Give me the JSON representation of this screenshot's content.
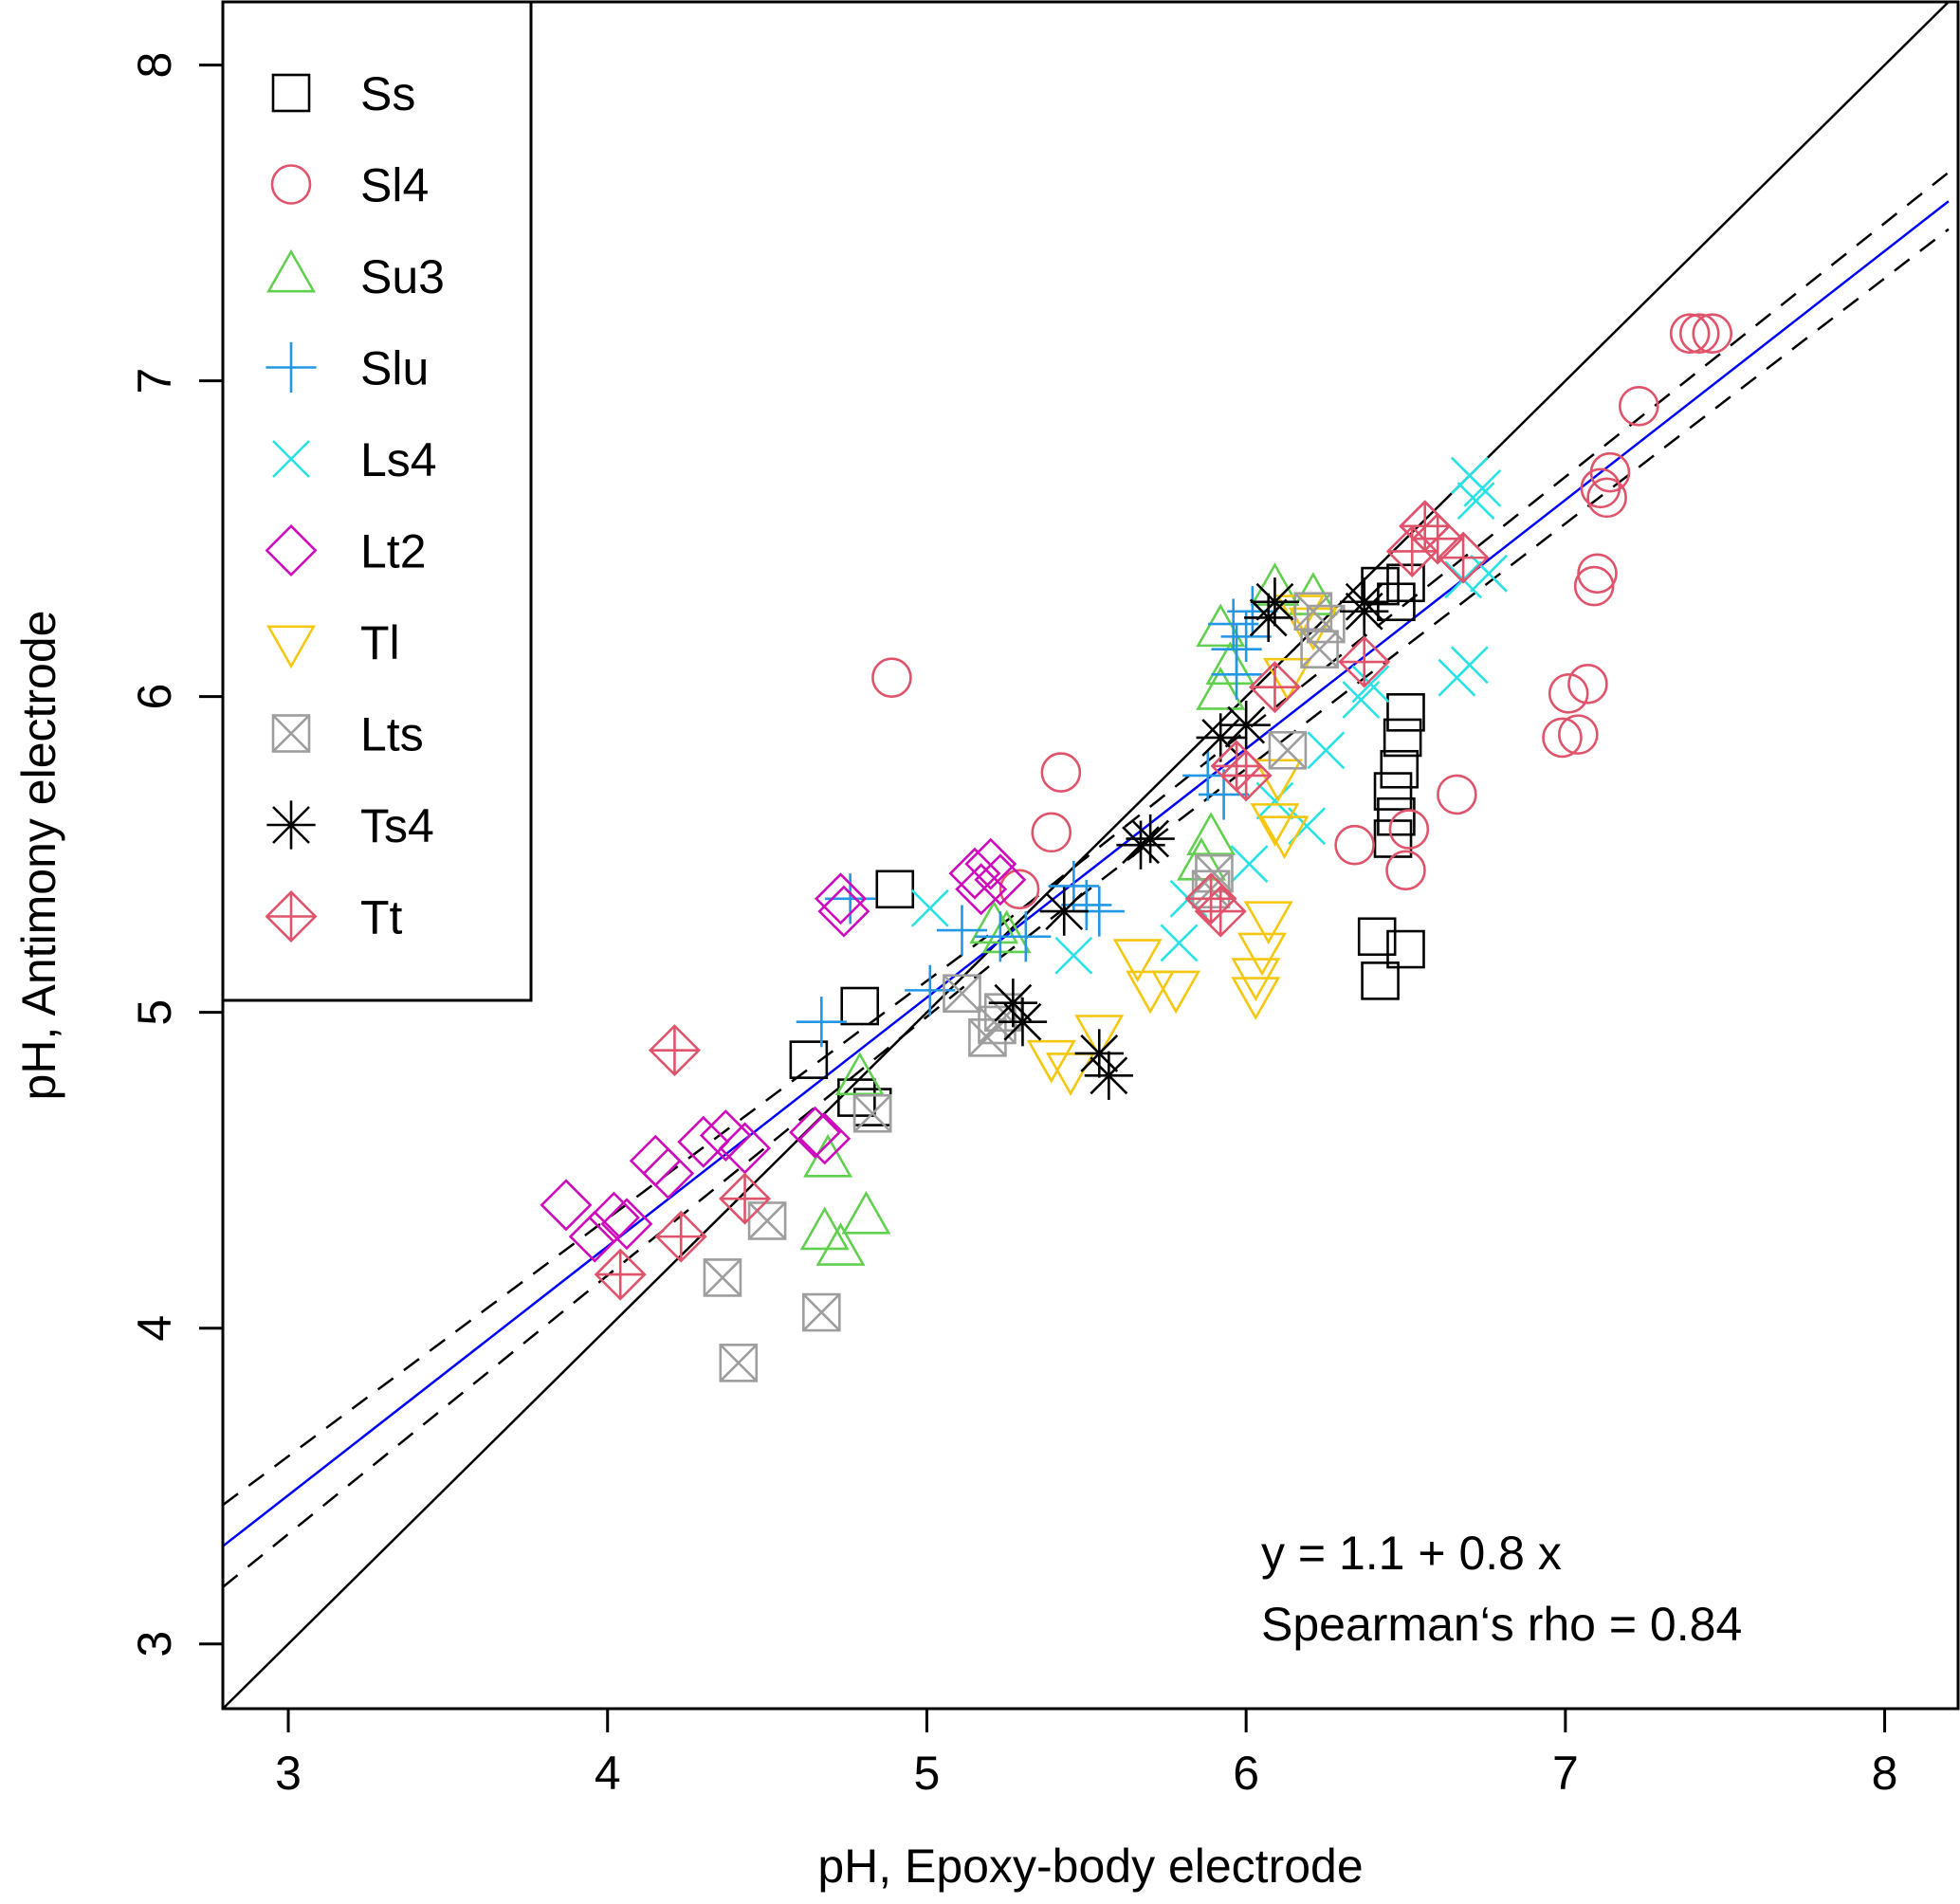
{
  "chart_data": {
    "type": "scatter",
    "title": "",
    "xlabel": "pH, Epoxy-body electrode",
    "ylabel": "pH, Antimony electrode",
    "xlim": [
      2.795,
      8.23
    ],
    "ylim": [
      2.795,
      8.2
    ],
    "xticks": [
      3,
      4,
      5,
      6,
      7,
      8
    ],
    "yticks": [
      3,
      4,
      5,
      6,
      7,
      8
    ],
    "xtick_labels": [
      "3",
      "4",
      "5",
      "6",
      "7",
      "8"
    ],
    "ytick_labels": [
      "3",
      "4",
      "5",
      "6",
      "7",
      "8"
    ],
    "grid": false,
    "legend_position": "top-left",
    "annotations": [
      "y = 1.1 + 0.8 x",
      "Spearman‘s rho = 0.84"
    ],
    "lines": [
      {
        "name": "identity",
        "kind": "solid",
        "color": "#000000",
        "intercept": 0,
        "slope": 1
      },
      {
        "name": "regression",
        "kind": "solid",
        "color": "#0000ff",
        "intercept": 1.107,
        "slope": 0.788
      },
      {
        "name": "confidence-upper",
        "kind": "dashed",
        "color": "#000000",
        "points": [
          [
            2.795,
            3.44
          ],
          [
            5.2,
            5.25
          ],
          [
            8.2,
            7.66
          ]
        ]
      },
      {
        "name": "confidence-lower",
        "kind": "dashed",
        "color": "#000000",
        "points": [
          [
            2.795,
            3.18
          ],
          [
            5.2,
            5.15
          ],
          [
            8.2,
            7.48
          ]
        ]
      }
    ],
    "series": [
      {
        "name": "Ss",
        "marker": "square",
        "color": "#000000",
        "points": [
          [
            4.9,
            5.39
          ],
          [
            4.79,
            5.02
          ],
          [
            4.63,
            4.85
          ],
          [
            4.78,
            4.73
          ],
          [
            4.83,
            4.7
          ],
          [
            6.47,
            6.3
          ],
          [
            6.42,
            6.35
          ],
          [
            6.5,
            6.36
          ],
          [
            6.5,
            5.95
          ],
          [
            6.49,
            5.87
          ],
          [
            6.48,
            5.77
          ],
          [
            6.46,
            5.7
          ],
          [
            6.47,
            5.62
          ],
          [
            6.46,
            5.55
          ],
          [
            6.41,
            5.24
          ],
          [
            6.5,
            5.2
          ],
          [
            6.42,
            5.1
          ]
        ]
      },
      {
        "name": "Sl4",
        "marker": "circle",
        "color": "#df536b",
        "points": [
          [
            4.89,
            6.06
          ],
          [
            5.42,
            5.76
          ],
          [
            5.39,
            5.57
          ],
          [
            5.29,
            5.39
          ],
          [
            6.34,
            5.53
          ],
          [
            6.51,
            5.58
          ],
          [
            6.5,
            5.45
          ],
          [
            6.66,
            5.69
          ],
          [
            6.99,
            5.87
          ],
          [
            7.04,
            5.88
          ],
          [
            7.01,
            6.01
          ],
          [
            7.07,
            6.04
          ],
          [
            7.09,
            6.35
          ],
          [
            7.1,
            6.39
          ],
          [
            7.11,
            6.66
          ],
          [
            7.14,
            6.71
          ],
          [
            7.13,
            6.63
          ],
          [
            7.23,
            6.92
          ],
          [
            7.39,
            7.15
          ],
          [
            7.42,
            7.15
          ],
          [
            7.46,
            7.15
          ]
        ]
      },
      {
        "name": "Su3",
        "marker": "triangle-up",
        "color": "#61d04f",
        "points": [
          [
            4.81,
            4.35
          ],
          [
            4.73,
            4.25
          ],
          [
            4.68,
            4.3
          ],
          [
            4.69,
            4.53
          ],
          [
            4.79,
            4.79
          ],
          [
            5.21,
            5.27
          ],
          [
            5.25,
            5.24
          ],
          [
            5.89,
            5.55
          ],
          [
            5.86,
            5.47
          ],
          [
            5.92,
            6.01
          ],
          [
            5.95,
            6.09
          ],
          [
            6.09,
            6.34
          ],
          [
            6.21,
            6.31
          ],
          [
            5.92,
            6.21
          ]
        ]
      },
      {
        "name": "Slu",
        "marker": "plus",
        "color": "#2297e6",
        "points": [
          [
            4.67,
            4.97
          ],
          [
            5.01,
            5.07
          ],
          [
            5.11,
            5.26
          ],
          [
            5.23,
            5.24
          ],
          [
            5.31,
            5.24
          ],
          [
            5.46,
            5.4
          ],
          [
            5.5,
            5.34
          ],
          [
            5.54,
            5.32
          ],
          [
            5.88,
            5.75
          ],
          [
            5.93,
            5.69
          ],
          [
            5.96,
            6.23
          ],
          [
            5.97,
            6.15
          ],
          [
            6.0,
            6.19
          ],
          [
            6.02,
            6.27
          ],
          [
            5.97,
            6.07
          ],
          [
            4.76,
            5.36
          ]
        ]
      },
      {
        "name": "Ls4",
        "marker": "x",
        "color": "#28e2e5",
        "points": [
          [
            5.01,
            5.33
          ],
          [
            5.46,
            5.18
          ],
          [
            5.79,
            5.22
          ],
          [
            5.82,
            5.36
          ],
          [
            6.01,
            5.47
          ],
          [
            6.19,
            5.59
          ],
          [
            6.25,
            5.83
          ],
          [
            6.36,
            5.99
          ],
          [
            6.39,
            6.04
          ],
          [
            6.66,
            6.06
          ],
          [
            6.7,
            6.1
          ],
          [
            6.72,
            6.62
          ],
          [
            6.74,
            6.66
          ],
          [
            6.7,
            6.7
          ],
          [
            6.68,
            6.37
          ],
          [
            6.76,
            6.39
          ],
          [
            6.09,
            5.67
          ]
        ]
      },
      {
        "name": "Lt2",
        "marker": "diamond",
        "color": "#cd0bbc",
        "points": [
          [
            3.87,
            4.39
          ],
          [
            3.96,
            4.29
          ],
          [
            4.02,
            4.35
          ],
          [
            4.06,
            4.33
          ],
          [
            4.15,
            4.53
          ],
          [
            4.19,
            4.49
          ],
          [
            4.3,
            4.59
          ],
          [
            4.37,
            4.61
          ],
          [
            4.43,
            4.57
          ],
          [
            4.65,
            4.62
          ],
          [
            4.68,
            4.6
          ],
          [
            4.73,
            5.36
          ],
          [
            4.74,
            5.32
          ],
          [
            5.15,
            5.44
          ],
          [
            5.2,
            5.47
          ],
          [
            5.23,
            5.42
          ],
          [
            5.17,
            5.39
          ],
          [
            6.56,
            6.54
          ]
        ]
      },
      {
        "name": "Tl",
        "marker": "triangle-down",
        "color": "#f5c710",
        "points": [
          [
            5.39,
            4.86
          ],
          [
            5.45,
            4.82
          ],
          [
            5.54,
            4.94
          ],
          [
            5.66,
            5.18
          ],
          [
            5.7,
            5.08
          ],
          [
            5.78,
            5.08
          ],
          [
            6.03,
            5.06
          ],
          [
            6.05,
            5.2
          ],
          [
            6.07,
            5.3
          ],
          [
            6.09,
            5.61
          ],
          [
            6.12,
            5.57
          ],
          [
            6.1,
            5.75
          ],
          [
            6.13,
            6.07
          ],
          [
            6.17,
            6.27
          ],
          [
            6.21,
            6.23
          ],
          [
            6.03,
            5.12
          ]
        ]
      },
      {
        "name": "Lts",
        "marker": "square-x",
        "color": "#9e9e9e",
        "points": [
          [
            4.41,
            3.89
          ],
          [
            4.36,
            4.16
          ],
          [
            4.5,
            4.34
          ],
          [
            4.67,
            4.05
          ],
          [
            4.83,
            4.68
          ],
          [
            5.11,
            5.06
          ],
          [
            5.19,
            4.92
          ],
          [
            5.22,
            4.96
          ],
          [
            5.24,
            5.0
          ],
          [
            5.9,
            5.44
          ],
          [
            5.89,
            5.39
          ],
          [
            6.13,
            5.83
          ],
          [
            6.21,
            6.27
          ],
          [
            6.23,
            6.15
          ],
          [
            6.25,
            6.23
          ]
        ]
      },
      {
        "name": "Ts4",
        "marker": "asterisk",
        "color": "#000000",
        "points": [
          [
            5.3,
            4.97
          ],
          [
            5.43,
            5.32
          ],
          [
            5.54,
            4.87
          ],
          [
            5.57,
            4.8
          ],
          [
            5.67,
            5.53
          ],
          [
            5.7,
            5.55
          ],
          [
            5.27,
            5.03
          ],
          [
            5.92,
            5.87
          ],
          [
            6.0,
            5.91
          ],
          [
            6.07,
            6.25
          ],
          [
            6.09,
            6.3
          ],
          [
            6.37,
            6.27
          ],
          [
            6.37,
            6.3
          ]
        ]
      },
      {
        "name": "Tt",
        "marker": "diamond-plus",
        "color": "#df536b",
        "points": [
          [
            4.21,
            4.88
          ],
          [
            4.23,
            4.29
          ],
          [
            4.04,
            4.17
          ],
          [
            4.43,
            4.41
          ],
          [
            5.97,
            5.78
          ],
          [
            6.0,
            5.75
          ],
          [
            5.89,
            5.36
          ],
          [
            5.92,
            5.32
          ],
          [
            6.09,
            6.03
          ],
          [
            6.37,
            6.11
          ],
          [
            6.52,
            6.46
          ],
          [
            6.6,
            6.5
          ],
          [
            6.68,
            6.44
          ],
          [
            6.56,
            6.54
          ]
        ]
      }
    ]
  }
}
